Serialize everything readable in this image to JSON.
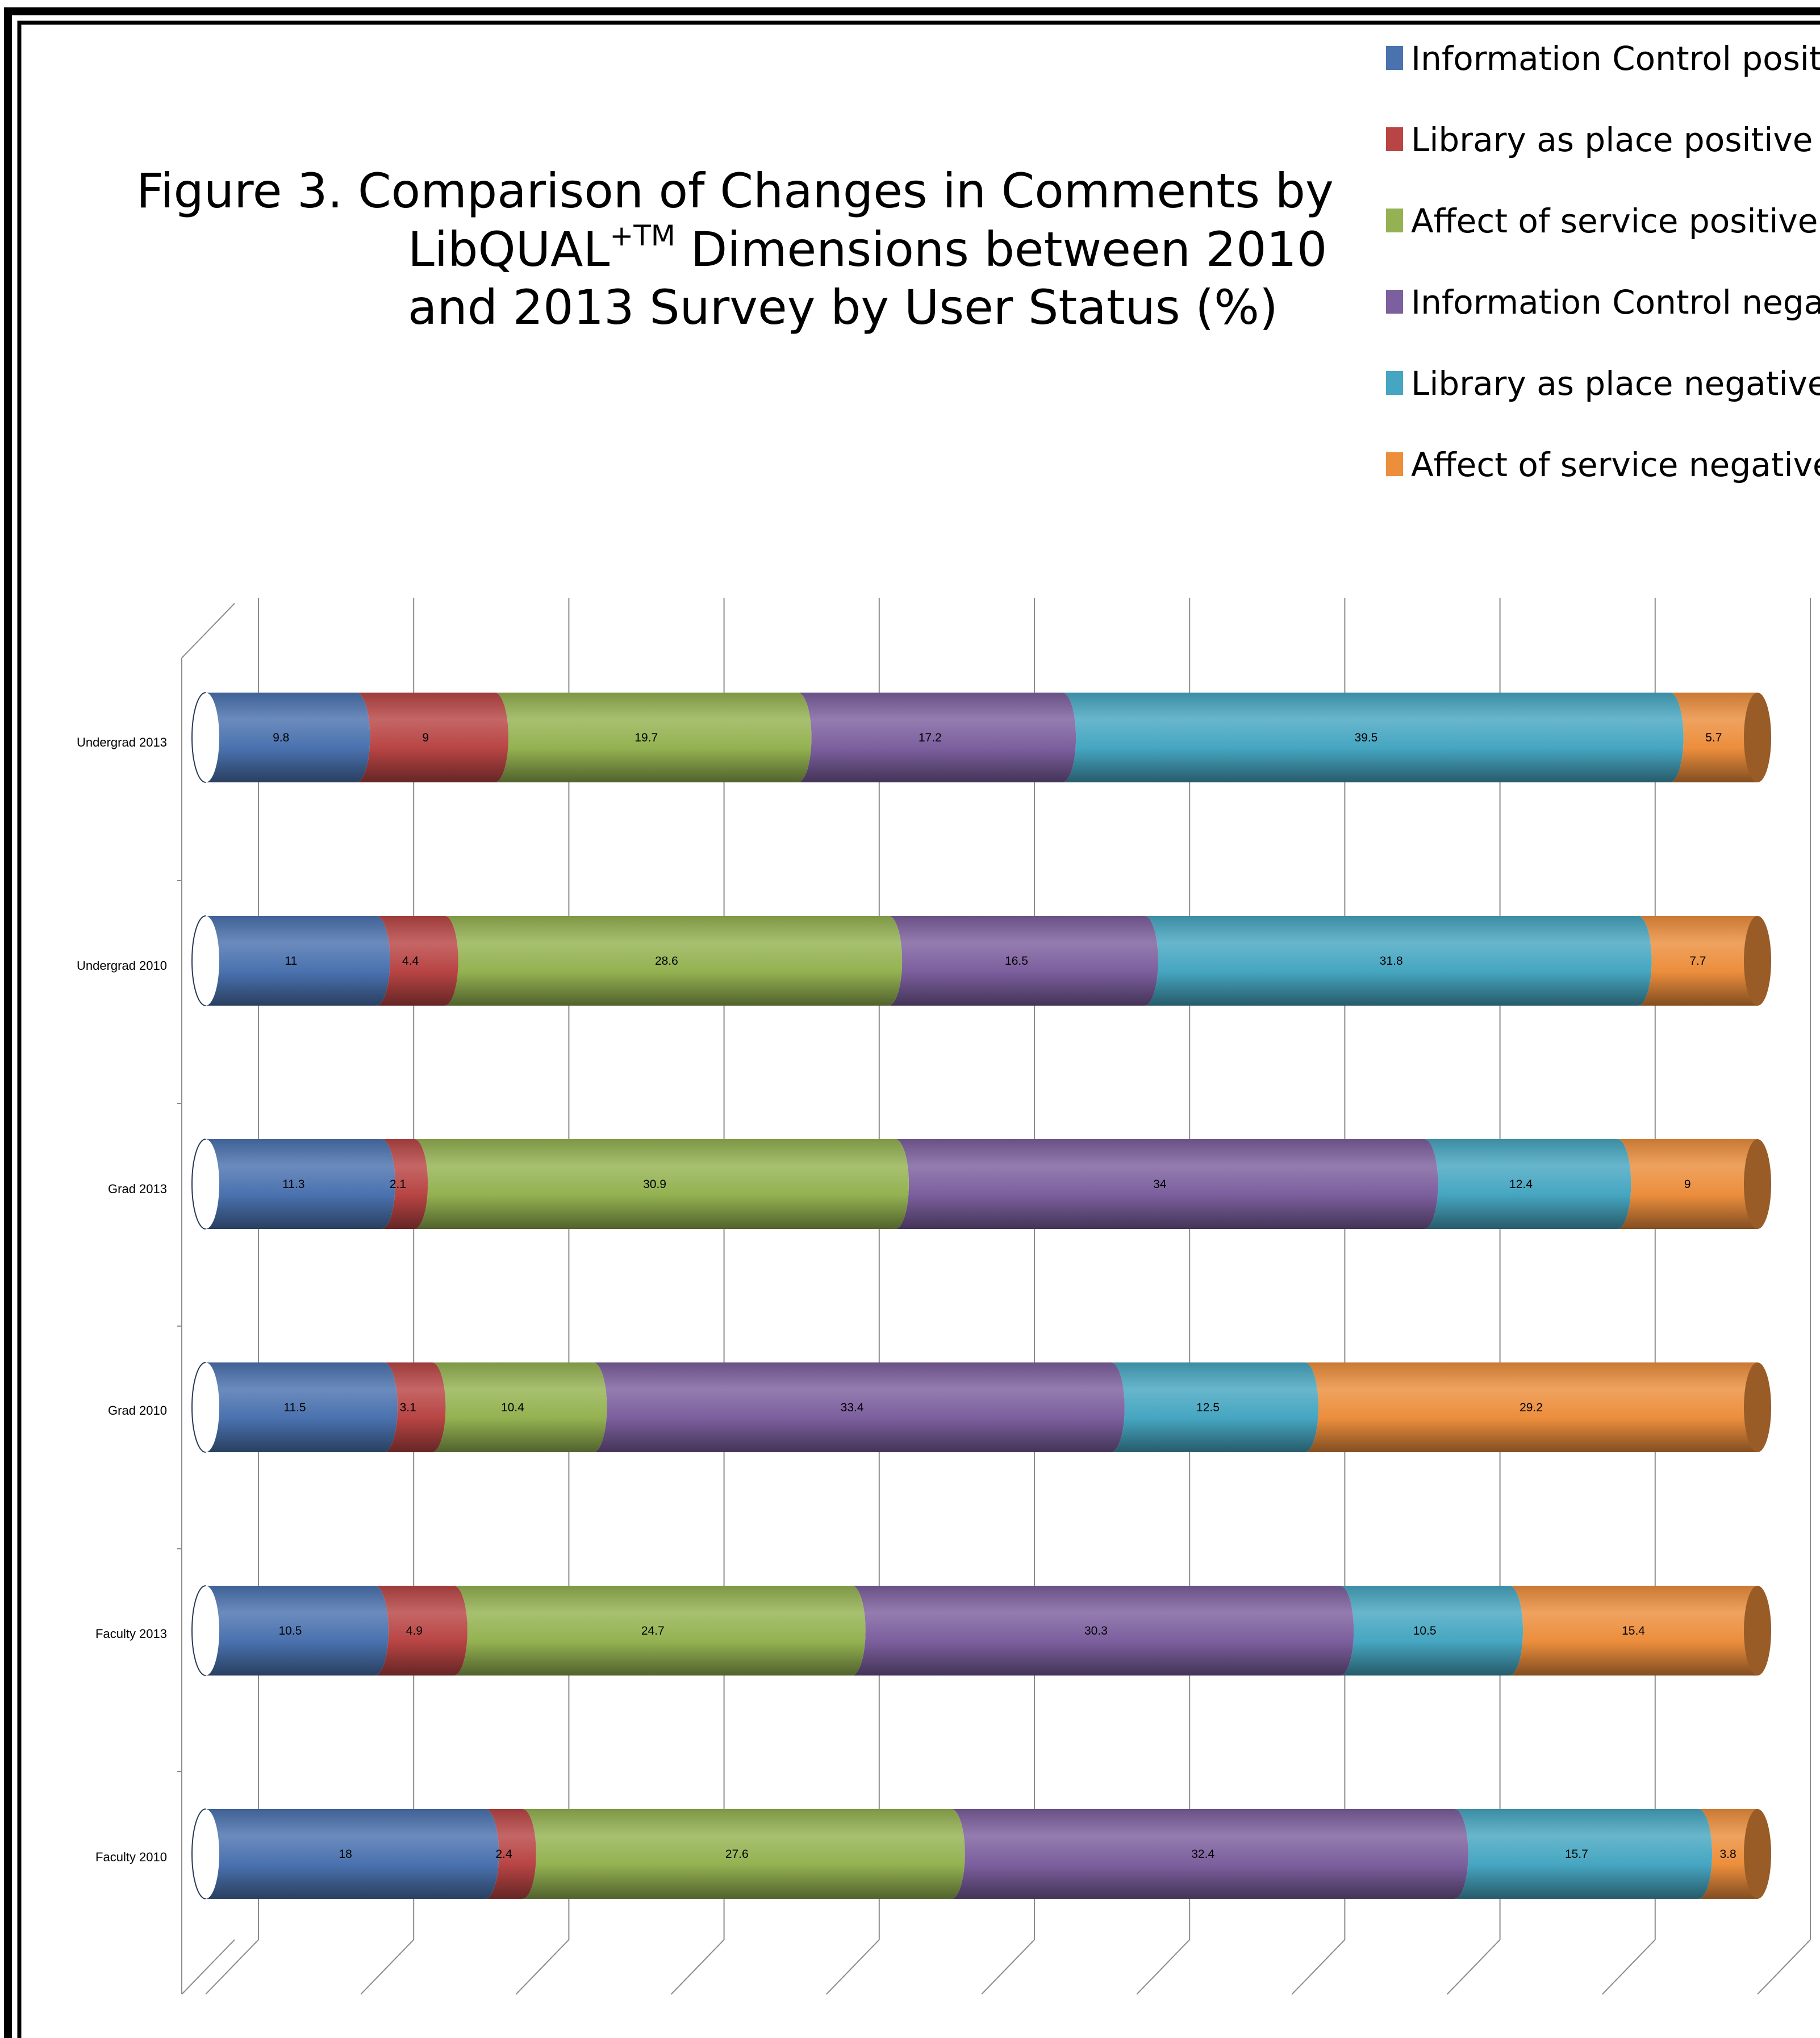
{
  "chart_data": {
    "type": "bar",
    "orientation": "horizontal",
    "stacked": "100%",
    "style": "3d-cylinder",
    "title": "Figure 3. Comparison of Changes in Comments by LibQUAL+TM Dimensions between 2010 and 2013 Survey by User Status (%)",
    "title_lines": [
      "Figure 3. Comparison of Changes in Comments by",
      "LibQUAL",
      "+TM",
      " Dimensions between 2010",
      "and 2013 Survey by User Status (%)"
    ],
    "xlabel": "",
    "ylabel": "",
    "grid": true,
    "legend_position": "top-right",
    "categories": [
      "Undergrad 2013",
      "Undergrad 2010",
      "Grad 2013",
      "Grad 2010",
      "Faculty 2013",
      "Faculty 2010"
    ],
    "series": [
      {
        "name": "Information Control positive",
        "color": "#4A72AF",
        "values": [
          9.8,
          11,
          11.3,
          11.5,
          10.5,
          18
        ]
      },
      {
        "name": "Library as place positive",
        "color": "#B84544",
        "values": [
          9,
          4.4,
          2.1,
          3.1,
          4.9,
          2.4
        ]
      },
      {
        "name": "Affect of service positive",
        "color": "#94B251",
        "values": [
          19.7,
          28.6,
          30.9,
          10.4,
          24.7,
          27.6
        ]
      },
      {
        "name": "Information Control negative",
        "color": "#7C5F9E",
        "values": [
          17.2,
          16.5,
          34,
          33.4,
          30.3,
          32.4
        ]
      },
      {
        "name": "Library as place negative",
        "color": "#46A6C1",
        "values": [
          39.5,
          31.8,
          12.4,
          12.5,
          10.5,
          15.7
        ]
      },
      {
        "name": "Affect of service negative",
        "color": "#EC8E3C",
        "values": [
          5.7,
          7.7,
          9,
          29.2,
          15.4,
          3.8
        ]
      }
    ]
  }
}
